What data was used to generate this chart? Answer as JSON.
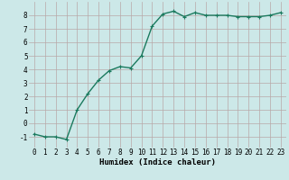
{
  "x": [
    0,
    1,
    2,
    3,
    4,
    5,
    6,
    7,
    8,
    9,
    10,
    11,
    12,
    13,
    14,
    15,
    16,
    17,
    18,
    19,
    20,
    21,
    22,
    23
  ],
  "y": [
    -0.8,
    -1.0,
    -1.0,
    -1.2,
    1.0,
    2.2,
    3.2,
    3.9,
    4.2,
    4.1,
    5.0,
    7.2,
    8.1,
    8.3,
    7.9,
    8.2,
    8.0,
    8.0,
    8.0,
    7.9,
    7.9,
    7.9,
    8.0,
    8.2
  ],
  "line_color": "#1a7a5e",
  "marker": "+",
  "marker_size": 3,
  "background_color": "#cce8e8",
  "grid_color": "#b8a8a8",
  "xlabel": "Humidex (Indice chaleur)",
  "xlim": [
    -0.5,
    23.5
  ],
  "ylim": [
    -1.8,
    9.0
  ],
  "yticks": [
    -1,
    0,
    1,
    2,
    3,
    4,
    5,
    6,
    7,
    8
  ],
  "xticks": [
    0,
    1,
    2,
    3,
    4,
    5,
    6,
    7,
    8,
    9,
    10,
    11,
    12,
    13,
    14,
    15,
    16,
    17,
    18,
    19,
    20,
    21,
    22,
    23
  ],
  "xlabel_fontsize": 6.5,
  "tick_fontsize": 5.5,
  "line_width": 1.0,
  "marker_edge_width": 0.8
}
